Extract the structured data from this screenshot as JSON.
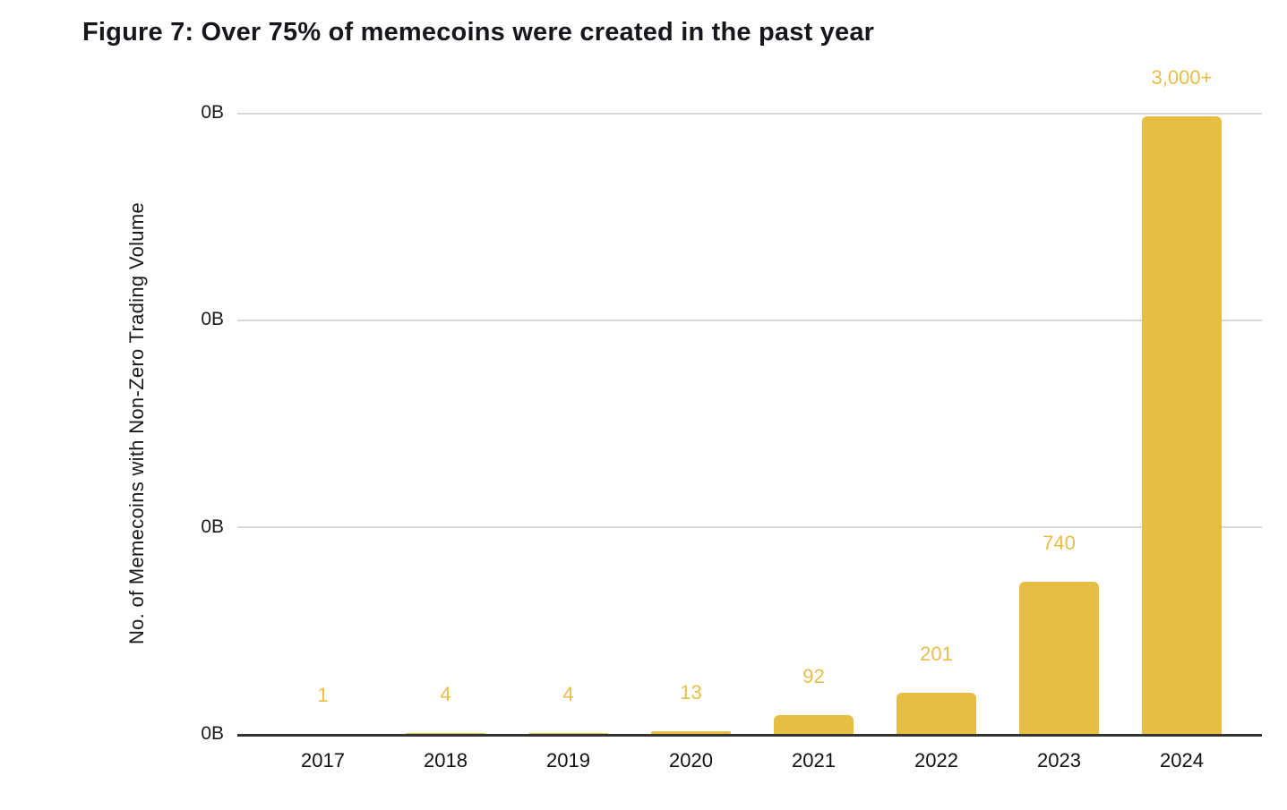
{
  "figure": {
    "title": "Figure 7: Over 75% of memecoins were created in the past year"
  },
  "chart_data": {
    "type": "bar",
    "title": "Figure 7: Over 75% of memecoins were created in the past year",
    "categories": [
      "2017",
      "2018",
      "2019",
      "2020",
      "2021",
      "2022",
      "2023",
      "2024"
    ],
    "values": [
      1,
      4,
      4,
      13,
      92,
      201,
      740,
      3000
    ],
    "value_labels": [
      "1",
      "4",
      "4",
      "13",
      "92",
      "201",
      "740",
      "3,000+"
    ],
    "xlabel": "",
    "ylabel": "No. of Memecoins with Non-Zero Trading Volume",
    "y_tick_labels": [
      "0B",
      "0B",
      "0B",
      "0B"
    ],
    "ylim": [
      0,
      3020
    ],
    "grid": "horizontal",
    "legend": "none",
    "bar_color": "#e6bd45",
    "value_label_color": "#e8be48",
    "gridline_color": "#d9d9d9",
    "axis_line_color": "#333333",
    "tick_label_color": "#1a1a1a",
    "title_color": "#16161d"
  }
}
